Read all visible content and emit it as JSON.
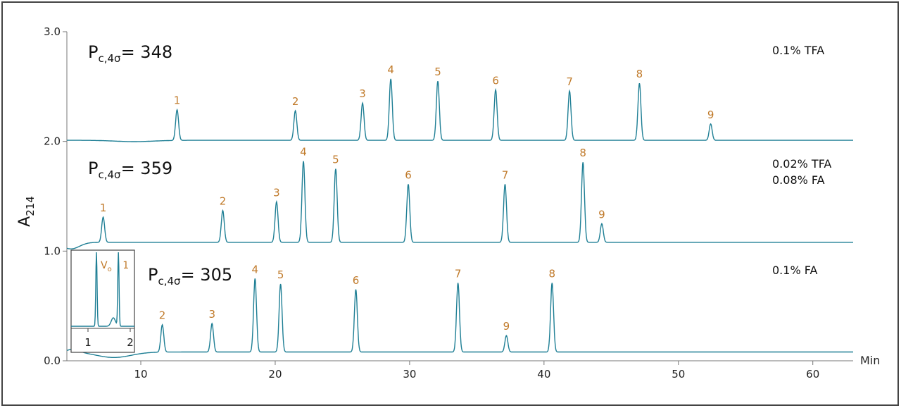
{
  "chart_data": {
    "type": "line",
    "xlabel": "Min",
    "ylabel": "A",
    "ylabel_sub": "214",
    "xlim": [
      4.5,
      63
    ],
    "ylim": [
      0.0,
      3.0
    ],
    "x_ticks": [
      10,
      20,
      30,
      40,
      50,
      60
    ],
    "x_tick_labels": [
      "10",
      "20",
      "30",
      "40",
      "50",
      "60"
    ],
    "y_ticks": [
      0.0,
      1.0,
      2.0,
      3.0
    ],
    "y_tick_labels": [
      "0.0",
      "1.0",
      "2.0",
      "3.0"
    ],
    "grid": false,
    "line_color": "#1f7f95",
    "peak_label_color": "#c07a2a",
    "series": [
      {
        "condition_lines": [
          "0.1% TFA"
        ],
        "pc_main": "P",
        "pc_sub": "c,4σ",
        "pc_value": "= 348",
        "baseline": 2.01,
        "peaks": [
          {
            "label": "1",
            "x": 12.7,
            "y": 2.29
          },
          {
            "label": "2",
            "x": 21.5,
            "y": 2.28
          },
          {
            "label": "3",
            "x": 26.5,
            "y": 2.35
          },
          {
            "label": "4",
            "x": 28.6,
            "y": 2.57
          },
          {
            "label": "5",
            "x": 32.1,
            "y": 2.55
          },
          {
            "label": "6",
            "x": 36.4,
            "y": 2.47
          },
          {
            "label": "7",
            "x": 41.9,
            "y": 2.46
          },
          {
            "label": "8",
            "x": 47.1,
            "y": 2.53
          },
          {
            "label": "9",
            "x": 52.4,
            "y": 2.16
          }
        ]
      },
      {
        "condition_lines": [
          "0.02% TFA",
          "0.08% FA"
        ],
        "pc_main": "P",
        "pc_sub": "c,4σ",
        "pc_value": "= 359",
        "baseline": 1.08,
        "peaks": [
          {
            "label": "1",
            "x": 7.2,
            "y": 1.31
          },
          {
            "label": "2",
            "x": 16.1,
            "y": 1.37
          },
          {
            "label": "3",
            "x": 20.1,
            "y": 1.45
          },
          {
            "label": "4",
            "x": 22.1,
            "y": 1.82
          },
          {
            "label": "5",
            "x": 24.5,
            "y": 1.75
          },
          {
            "label": "6",
            "x": 29.9,
            "y": 1.61
          },
          {
            "label": "7",
            "x": 37.1,
            "y": 1.61
          },
          {
            "label": "8",
            "x": 42.9,
            "y": 1.81
          },
          {
            "label": "9",
            "x": 44.3,
            "y": 1.25
          }
        ]
      },
      {
        "condition_lines": [
          "0.1% FA"
        ],
        "pc_main": "P",
        "pc_sub": "c,4σ",
        "pc_value": "= 305",
        "baseline": 0.08,
        "peaks": [
          {
            "label": "2",
            "x": 11.6,
            "y": 0.33
          },
          {
            "label": "3",
            "x": 15.3,
            "y": 0.34
          },
          {
            "label": "4",
            "x": 18.5,
            "y": 0.75
          },
          {
            "label": "5",
            "x": 20.4,
            "y": 0.7
          },
          {
            "label": "6",
            "x": 26.0,
            "y": 0.65
          },
          {
            "label": "7",
            "x": 33.6,
            "y": 0.71
          },
          {
            "label": "8",
            "x": 40.6,
            "y": 0.71
          },
          {
            "label": "9",
            "x": 37.2,
            "y": 0.23
          }
        ]
      }
    ],
    "inset": {
      "x_ticks": [
        1,
        2
      ],
      "x_tick_labels": [
        "1",
        "2"
      ],
      "peaks": [
        {
          "label": "V",
          "label_sub": "o",
          "x": 1.2
        },
        {
          "label": "1",
          "x": 1.72
        }
      ]
    }
  }
}
